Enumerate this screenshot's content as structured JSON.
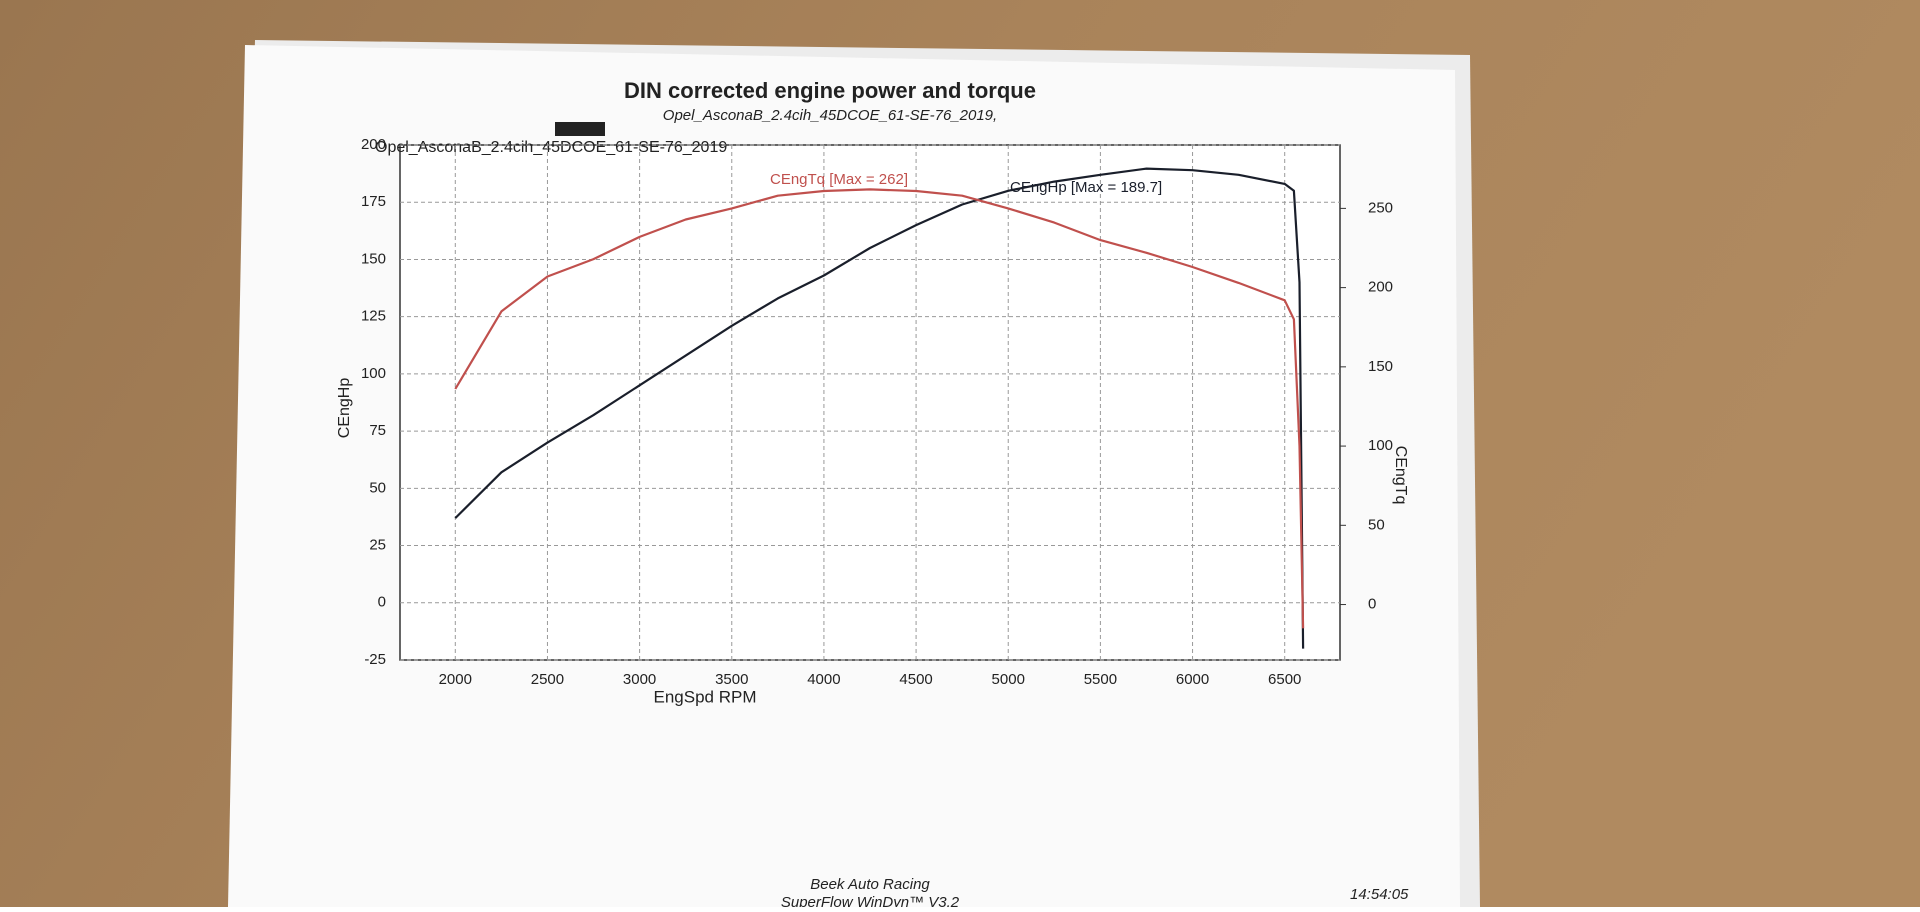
{
  "chart_data": {
    "type": "line",
    "title": "DIN corrected engine power and torque",
    "subtitle": "Opel_AsconaB_2.4cih_45DCOE_61-SE-76_2019,",
    "run_label": "Opel_AsconaB_2.4cih_45DCOE_61-SE-76_2019",
    "x_label": "EngSpd RPM",
    "y_label": "CEngHp",
    "y2_label": "CEngTq",
    "footer": [
      "Beek Auto Racing",
      "SuperFlow WinDyn™ V3.2"
    ],
    "time": "14:54:05",
    "x": [
      2000,
      2250,
      2500,
      2750,
      3000,
      3250,
      3500,
      3750,
      4000,
      4250,
      4500,
      4750,
      5000,
      5250,
      5500,
      5750,
      6000,
      6250,
      6500,
      6550,
      6580,
      6600
    ],
    "series": [
      {
        "name": "CEngHp [Max = 189.7]",
        "color": "#1a1f2b",
        "values": [
          37,
          57,
          70,
          82,
          95,
          108,
          121,
          133,
          143,
          155,
          165,
          174,
          180,
          184,
          187,
          189.7,
          189,
          187,
          183,
          180,
          140,
          -20
        ]
      },
      {
        "name": "CEngTq [Max = 262]",
        "color": "#c0504d",
        "axis": "y2",
        "values": [
          136,
          185,
          207,
          218,
          232,
          243,
          250,
          258,
          261,
          262,
          261,
          258,
          250,
          241,
          230,
          222,
          213,
          203,
          192,
          180,
          100,
          -15
        ]
      }
    ],
    "xlim": [
      1700,
      6800
    ],
    "xticks": [
      2000,
      2500,
      3000,
      3500,
      4000,
      4500,
      5000,
      5500,
      6000,
      6500
    ],
    "ylim": [
      -25,
      200
    ],
    "yticks": [
      -25,
      0,
      25,
      50,
      75,
      100,
      125,
      150,
      175,
      200
    ],
    "y2lim": [
      -35,
      290
    ],
    "y2ticks": [
      0,
      50,
      100,
      150,
      200,
      250
    ],
    "grid": true
  }
}
